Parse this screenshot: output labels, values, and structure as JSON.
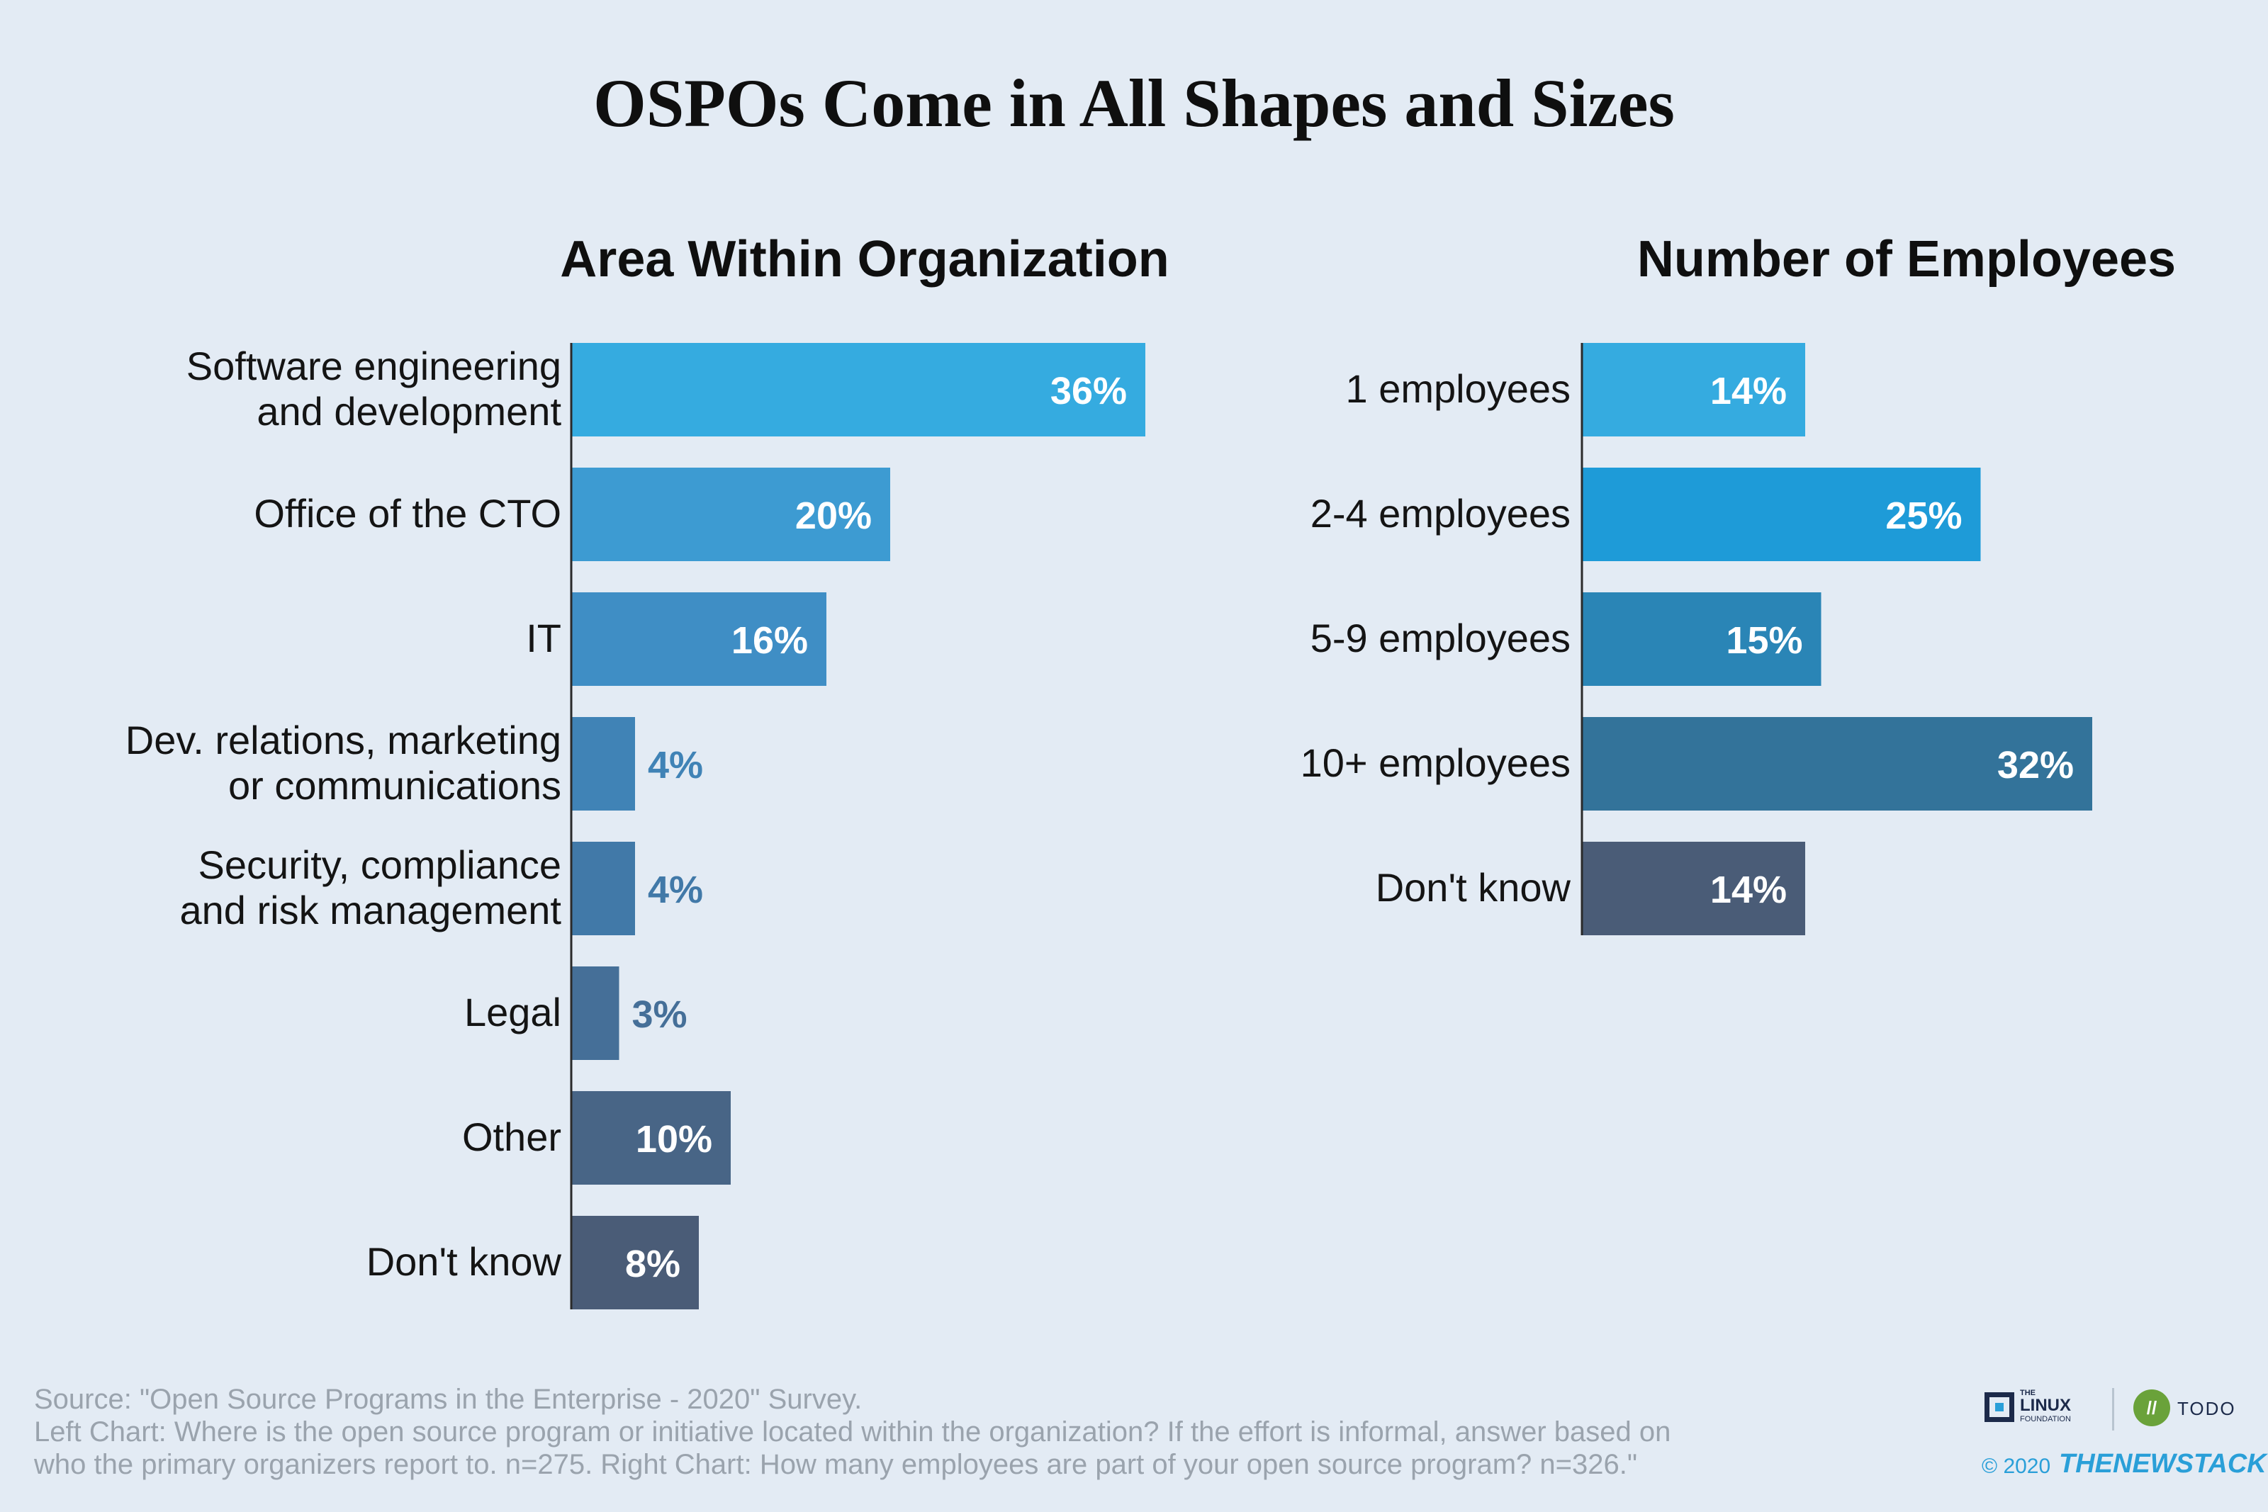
{
  "title": "OSPOs Come in All Shapes and Sizes",
  "chart_data": [
    {
      "type": "bar",
      "orientation": "horizontal",
      "title": "Area Within Organization",
      "xlim": [
        0,
        36
      ],
      "categories": [
        "Software engineering and development",
        "Office of the CTO",
        "IT",
        "Dev. relations, marketing or communications",
        "Security, compliance and risk management",
        "Legal",
        "Other",
        "Don't know"
      ],
      "category_lines": [
        [
          "Software engineering",
          "and development"
        ],
        [
          "Office of the CTO"
        ],
        [
          "IT"
        ],
        [
          "Dev. relations, marketing",
          "or communications"
        ],
        [
          "Security, compliance",
          "and risk management"
        ],
        [
          "Legal"
        ],
        [
          "Other"
        ],
        [
          "Don't know"
        ]
      ],
      "values": [
        36,
        20,
        16,
        4,
        4,
        3,
        10,
        8
      ],
      "value_labels": [
        "36%",
        "20%",
        "16%",
        "4%",
        "4%",
        "3%",
        "10%",
        "8%"
      ],
      "colors": [
        "#35abe0",
        "#3d9bd2",
        "#3f8ec5",
        "#4083b6",
        "#4179a8",
        "#456f98",
        "#486586",
        "#4a5c77"
      ]
    },
    {
      "type": "bar",
      "orientation": "horizontal",
      "title": "Number of Employees",
      "xlim": [
        0,
        32
      ],
      "categories": [
        "1 employees",
        "2-4 employees",
        "5-9 employees",
        "10+ employees",
        "Don't know"
      ],
      "category_lines": [
        [
          "1 employees"
        ],
        [
          "2-4 employees"
        ],
        [
          "5-9 employees"
        ],
        [
          "10+ employees"
        ],
        [
          "Don't know"
        ]
      ],
      "values": [
        14,
        25,
        15,
        32,
        14
      ],
      "value_labels": [
        "14%",
        "25%",
        "15%",
        "32%",
        "14%"
      ],
      "colors": [
        "#35abe0",
        "#1e9bd8",
        "#2a85b6",
        "#33739a",
        "#4a5c77"
      ]
    }
  ],
  "footer": {
    "source": "Source: \"Open Source Programs in the Enterprise - 2020\" Survey.",
    "note_line1": "Left Chart: Where is the open source program or initiative located within the organization? If the effort is informal, answer based on",
    "note_line2": "who the primary organizers report to.  n=275. Right Chart: How many employees are part of your open source program?  n=326.\""
  },
  "logos": {
    "lf_small": "THE",
    "lf_main": "LINUX",
    "lf_foundation": "FOUNDATION",
    "todo_mark": "//",
    "todo": "TODO",
    "copyright": "© 2020",
    "tns": "THENEWSTACK"
  }
}
